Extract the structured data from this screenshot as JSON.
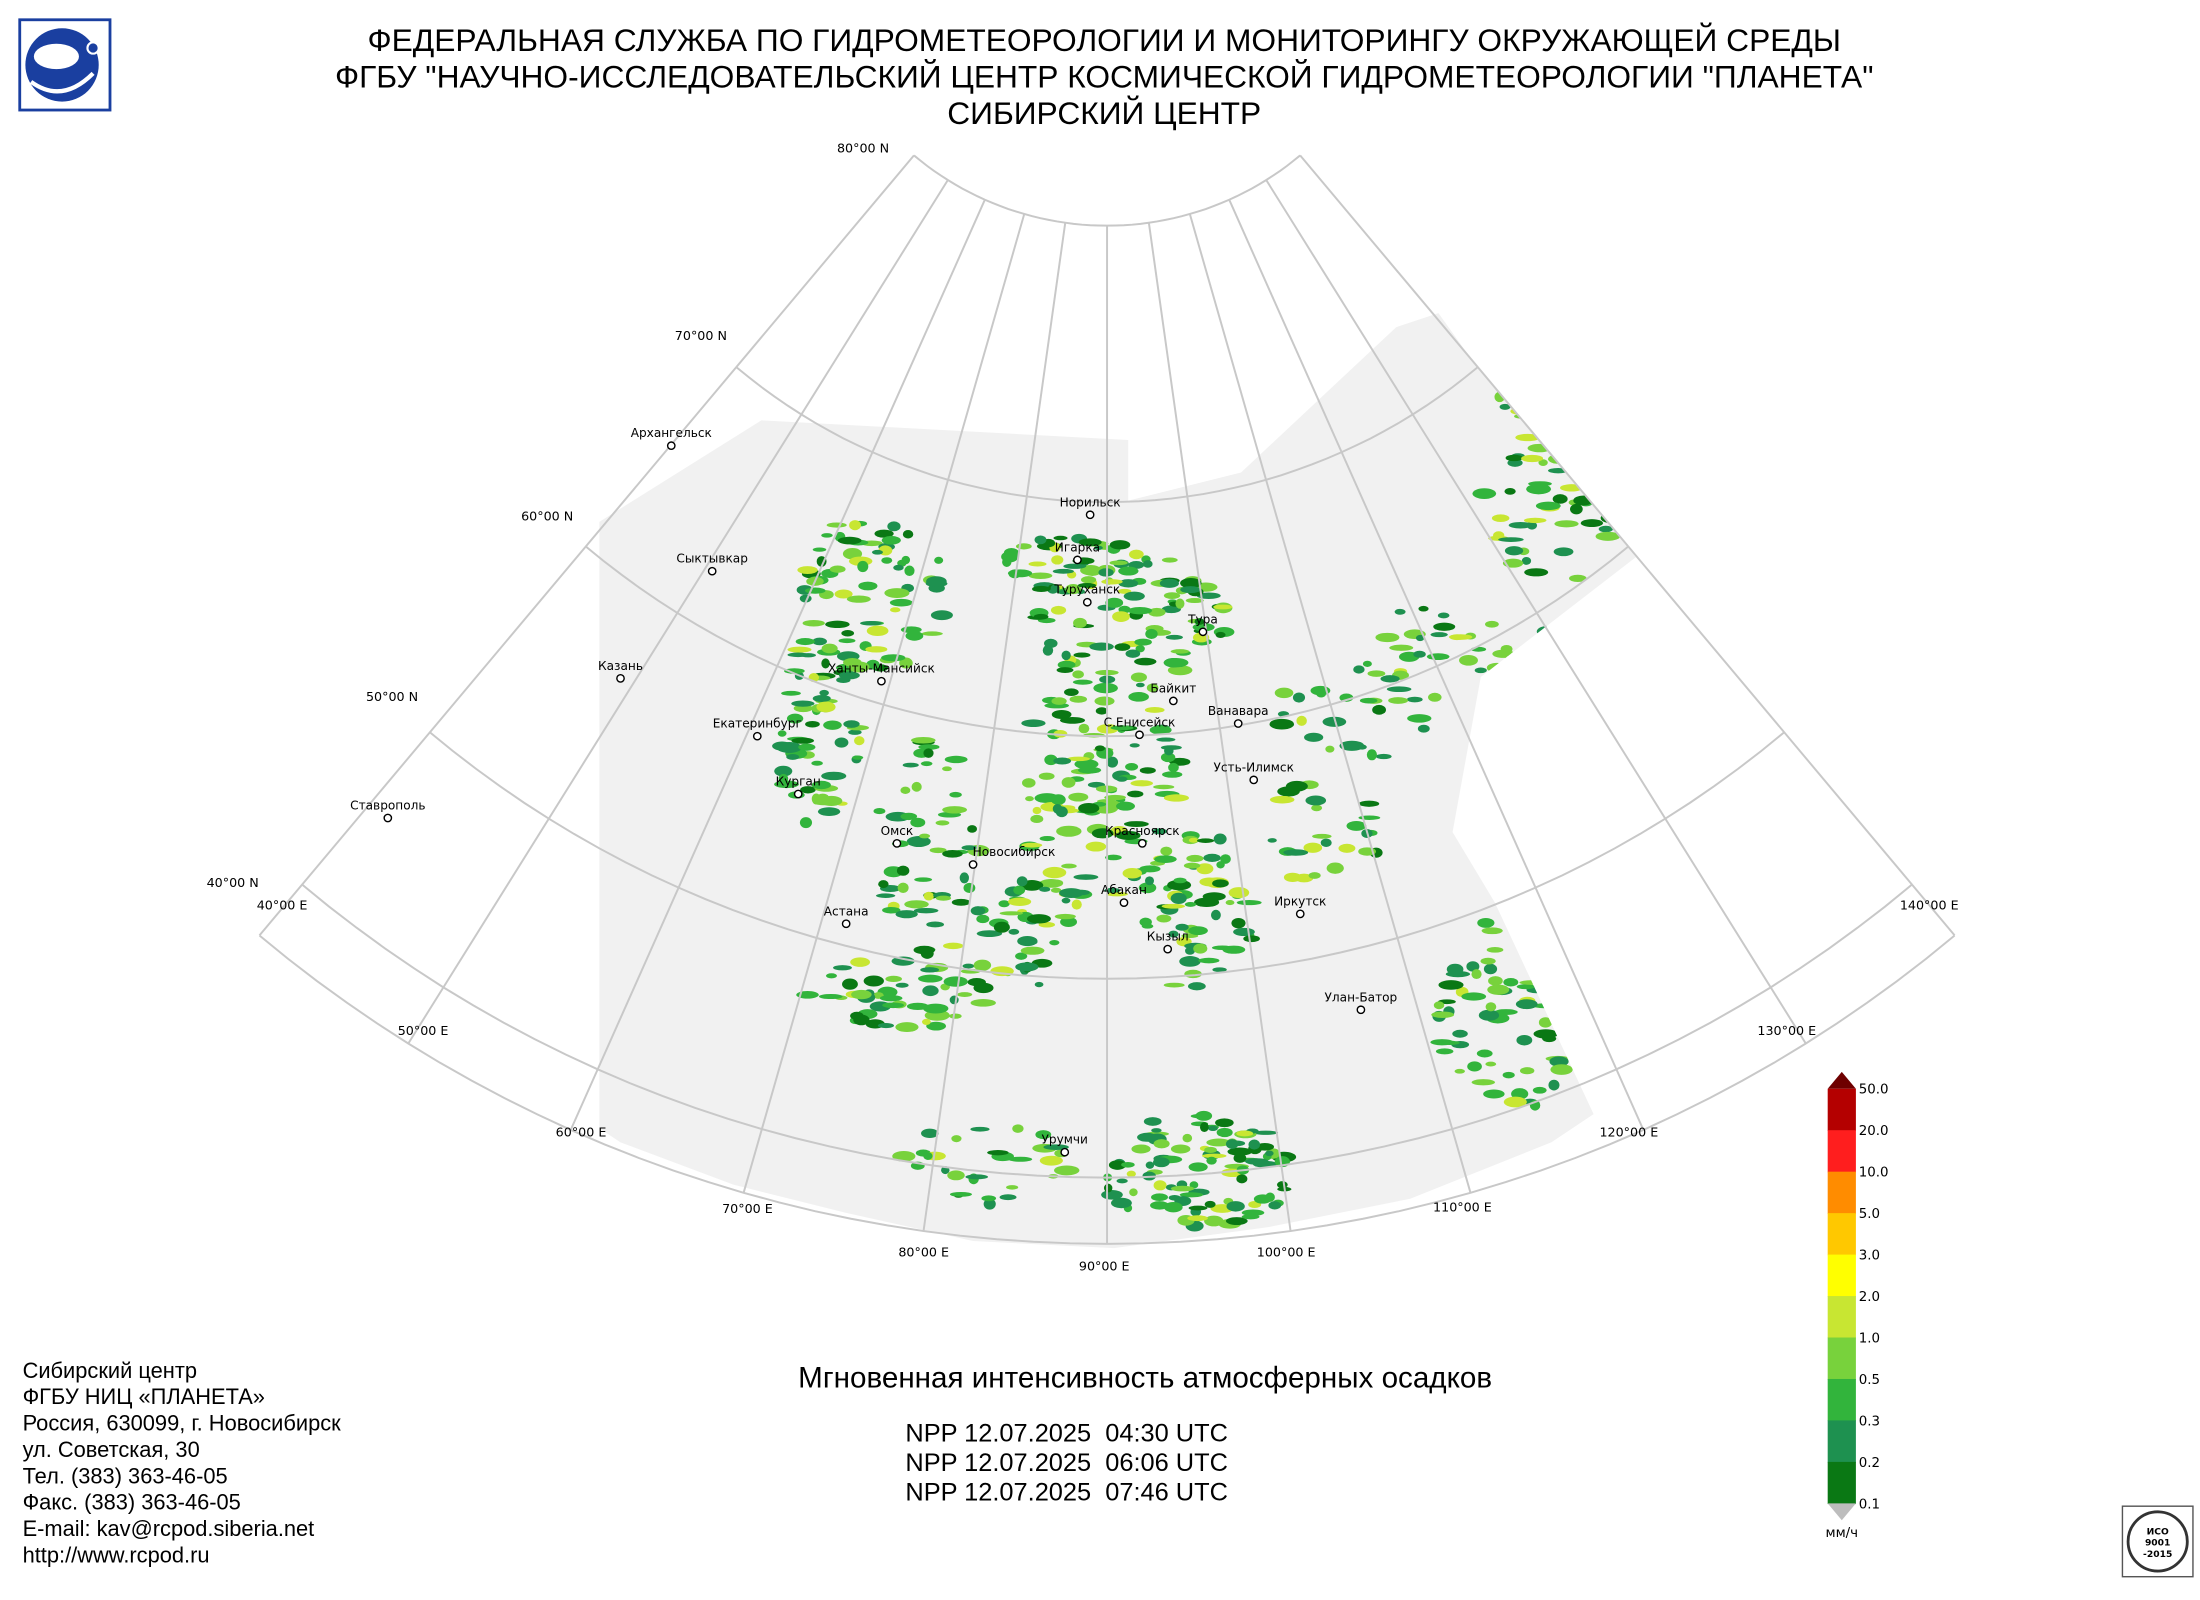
{
  "header": {
    "lines": [
      "ФЕДЕРАЛЬНАЯ СЛУЖБА ПО ГИДРОМЕТЕОРОЛОГИИ И МОНИТОРИНГУ ОКРУЖАЮЩЕЙ СРЕДЫ",
      "ФГБУ \"НАУЧНО-ИССЛЕДОВАТЕЛЬСКИЙ ЦЕНТР КОСМИЧЕСКОЙ ГИДРОМЕТЕОРОЛОГИИ \"ПЛАНЕТА\"",
      "СИБИРСКИЙ ЦЕНТР"
    ]
  },
  "map": {
    "parallels": [
      "80°00 N",
      "70°00 N",
      "60°00 N",
      "50°00 N",
      "40°00 N"
    ],
    "meridians": [
      "40°00 E",
      "50°00 E",
      "60°00 E",
      "70°00 E",
      "80°00 E",
      "90°00 E",
      "100°00 E",
      "110°00 E",
      "120°00 E",
      "130°00 E",
      "140°00 E"
    ],
    "cities": [
      "Архангельск",
      "Сыктывкар",
      "Казань",
      "Екатеринбург",
      "Ставрополь",
      "Курган",
      "Ханты-Мансийск",
      "Омск",
      "Новосибирск",
      "Астана",
      "Норильск",
      "Игарка",
      "Туруханск",
      "Тура",
      "Байкит",
      "Ванавара",
      "С.Енисейск",
      "Усть-Илимск",
      "Красноярск",
      "Абакан",
      "Иркутск",
      "Кызыл",
      "Улан-Батор",
      "Урумчи"
    ]
  },
  "product": {
    "title": "Мгновенная интенсивность атмосферных осадков",
    "passes": [
      "NPP 12.07.2025  04:30 UTC",
      "NPP 12.07.2025  06:06 UTC",
      "NPP 12.07.2025  07:46 UTC"
    ]
  },
  "legend": {
    "unit": "мм/ч",
    "ticks": [
      "50.0",
      "20.0",
      "10.0",
      "5.0",
      "3.0",
      "2.0",
      "1.0",
      "0.5",
      "0.3",
      "0.2",
      "0.1"
    ],
    "colors": [
      "#b40000",
      "#ff1e1e",
      "#ff8c00",
      "#ffc800",
      "#ffff00",
      "#c8e632",
      "#78d23c",
      "#32b43c",
      "#1e9150",
      "#0a7814"
    ],
    "over_color": "#6e0000",
    "under_color": "#bdbdbd"
  },
  "contacts": {
    "lines": [
      "Сибирский центр",
      "ФГБУ НИЦ «ПЛАНЕТА»",
      "Россия, 630099, г. Новосибирск",
      "ул. Советская, 30",
      "Тел. (383) 363-46-05",
      "Факс. (383) 363-46-05",
      "E-mail: kav@rcpod.siberia.net",
      "http://www.rcpod.ru"
    ]
  },
  "iso": {
    "lines": [
      "ИСО",
      "9001",
      "-2015"
    ]
  }
}
